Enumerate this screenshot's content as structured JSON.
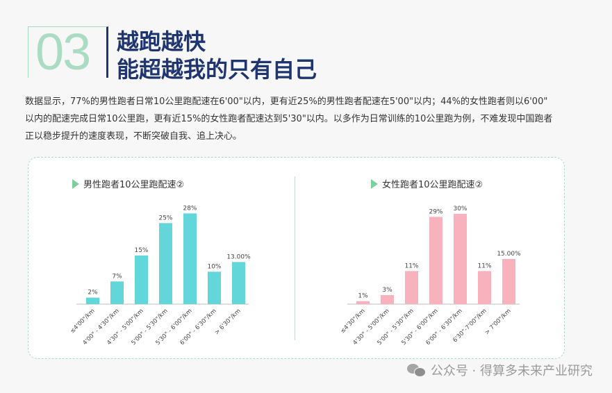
{
  "header": {
    "number": "03",
    "title_line1": "越跑越快",
    "title_line2": "能超越我的只有自己"
  },
  "body_lines": [
    "数据显示，77%的男性跑者日常10公里跑配速在6'00\"以内，更有近25%的男性跑者配速在5'00\"以内；44%的女性跑者则以6'00\"",
    "以内的配速完成日常10公里跑，更有近15%的女性跑者配速达到5'30\"以内。以多作为日常训练的10公里跑为例，不难发现中国跑者",
    "正以稳步提升的速度表现，不断突破自我、追上决心。"
  ],
  "watermark": "公众号 · 得算多未来产业研究",
  "chart_data": [
    {
      "type": "bar",
      "title": "男性跑者10公里跑配速②",
      "categories": [
        "≤4'00\"/km",
        "4'00\" - 4'30\"/km",
        "4'30\" - 5'00\"/km",
        "5'00\" - 5'30\"/km",
        "5'30\" - 6'00\"/km",
        "6'00\" - 6'30\"/km",
        "> 6'30\"/km"
      ],
      "values": [
        2,
        7,
        15,
        25,
        28,
        10,
        13
      ],
      "labels": [
        "2%",
        "7%",
        "15%",
        "25%",
        "28%",
        "10%",
        "13.00%"
      ],
      "color": "#62d6d8",
      "ylim": [
        0,
        30
      ]
    },
    {
      "type": "bar",
      "title": "女性跑者10公里跑配速②",
      "categories": [
        "≤4'30\"/km",
        "4'30\" - 5'00\"/km",
        "5'00\" - 5'30\"/km",
        "5'30\" - 6'00\"/km",
        "6'00\" - 6'30\"/km",
        "6'30\"-7'00\"/km",
        "> 7'00\"/km"
      ],
      "values": [
        1,
        3,
        11,
        29,
        30,
        11,
        15
      ],
      "labels": [
        "1%",
        "3%",
        "11%",
        "29%",
        "30%",
        "11%",
        "15.00%"
      ],
      "color": "#f7b2bd",
      "ylim": [
        0,
        30
      ]
    }
  ]
}
